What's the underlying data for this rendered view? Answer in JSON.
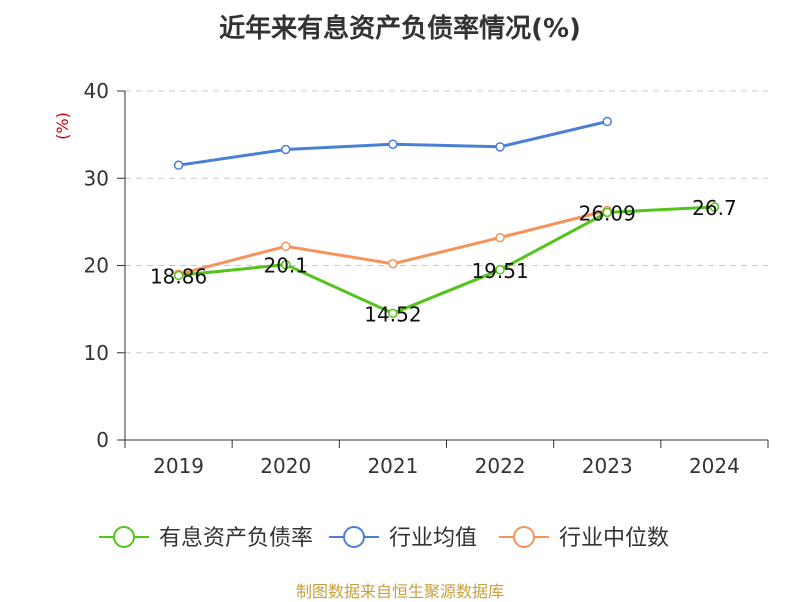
{
  "chart_data": {
    "type": "line",
    "title": "近年来有息资产负债率情况(%)",
    "ylabel": "(%)",
    "xlabel": "",
    "categories": [
      "2019",
      "2020",
      "2021",
      "2022",
      "2023",
      "2024"
    ],
    "ylim": [
      0,
      40
    ],
    "yticks": [
      0,
      10,
      20,
      30,
      40
    ],
    "grid": true,
    "legend_position": "bottom",
    "series": [
      {
        "name": "有息资产负债率",
        "color": "#52c41a",
        "values": [
          18.86,
          20.1,
          14.52,
          19.51,
          26.09,
          26.7
        ],
        "labels": [
          "18.86",
          "20.1",
          "14.52",
          "19.51",
          "26.09",
          "26.7"
        ]
      },
      {
        "name": "行业均值",
        "color": "#4a7fd6",
        "values": [
          31.5,
          33.3,
          33.9,
          33.6,
          36.5,
          null
        ]
      },
      {
        "name": "行业中位数",
        "color": "#f5935a",
        "values": [
          19.0,
          22.2,
          20.2,
          23.2,
          26.3,
          null
        ]
      }
    ],
    "source": "制图数据来自恒生聚源数据库"
  }
}
